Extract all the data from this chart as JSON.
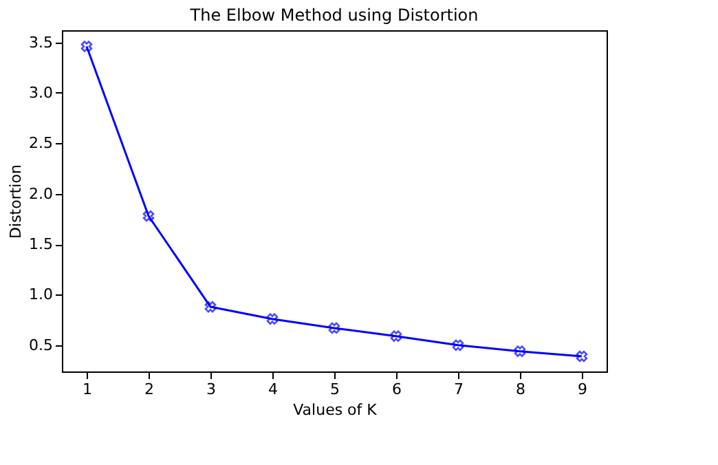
{
  "chart_data": {
    "type": "line",
    "title": "The Elbow Method using Distortion",
    "xlabel": "Values of K",
    "ylabel": "Distortion",
    "x": [
      1,
      2,
      3,
      4,
      5,
      6,
      7,
      8,
      9
    ],
    "series": [
      {
        "color": "#0000ff",
        "values": [
          3.46,
          1.78,
          0.88,
          0.76,
          0.67,
          0.59,
          0.5,
          0.44,
          0.39
        ]
      }
    ],
    "xlim": [
      0.6,
      9.4
    ],
    "xticks": [
      1,
      2,
      3,
      4,
      5,
      6,
      7,
      8,
      9
    ],
    "ylim": [
      0.24,
      3.62
    ],
    "yticks": [
      0.5,
      {
        "value": 1,
        "label": "1.0"
      },
      1.5,
      {
        "value": 2,
        "label": "2.0"
      },
      2.5,
      {
        "value": 3,
        "label": "3.0"
      },
      3.5
    ],
    "marker": "cross",
    "line_style": "solid",
    "grid": false,
    "legend": false
  }
}
